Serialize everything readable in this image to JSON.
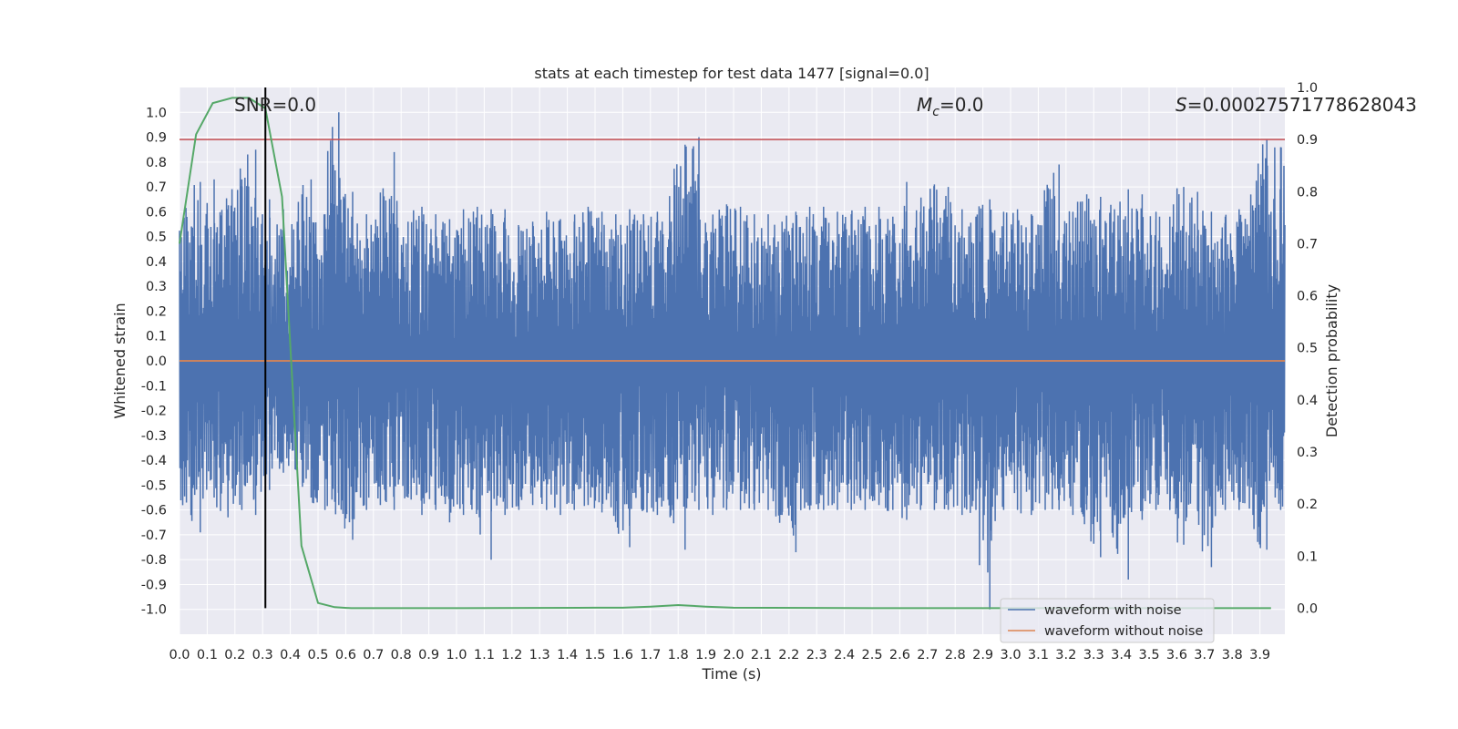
{
  "chart_data": {
    "type": "line",
    "title": "stats at each timestep for test data 1477 [signal=0.0]",
    "xlabel": "Time (s)",
    "ylabel": "Whitened strain",
    "y2label": "Detection probability",
    "xlim": [
      0.0,
      3.99
    ],
    "ylim": [
      -1.1,
      1.1
    ],
    "y2lim": [
      -0.05,
      1.0
    ],
    "x_ticks": [
      0.0,
      0.1,
      0.2,
      0.3,
      0.4,
      0.5,
      0.6,
      0.7,
      0.8,
      0.9,
      1.0,
      1.1,
      1.2,
      1.3,
      1.4,
      1.5,
      1.6,
      1.7,
      1.8,
      1.9,
      2.0,
      2.1,
      2.2,
      2.3,
      2.4,
      2.5,
      2.6,
      2.7,
      2.8,
      2.9,
      3.0,
      3.1,
      3.2,
      3.3,
      3.4,
      3.5,
      3.6,
      3.7,
      3.8,
      3.9
    ],
    "x_tick_labels": [
      "0.0",
      "0.1",
      "0.2",
      "0.3",
      "0.4",
      "0.5",
      "0.6",
      "0.7",
      "0.8",
      "0.9",
      "1.0",
      "1.1",
      "1.2",
      "1.3",
      "1.4",
      "1.5",
      "1.6",
      "1.7",
      "1.8",
      "1.9",
      "2.0",
      "2.1",
      "2.2",
      "2.3",
      "2.4",
      "2.5",
      "2.6",
      "2.7",
      "2.8",
      "2.9",
      "3.0",
      "3.1",
      "3.2",
      "3.3",
      "3.4",
      "3.5",
      "3.6",
      "3.7",
      "3.8",
      "3.9"
    ],
    "y_ticks": [
      1.0,
      0.9,
      0.8,
      0.7,
      0.6,
      0.5,
      0.4,
      0.3,
      0.2,
      0.1,
      0.0,
      -0.1,
      -0.2,
      -0.3,
      -0.4,
      -0.5,
      -0.6,
      -0.7,
      -0.8,
      -0.9,
      -1.0
    ],
    "y_tick_labels": [
      "1.0",
      "0.9",
      "0.8",
      "0.7",
      "0.6",
      "0.5",
      "0.4",
      "0.3",
      "0.2",
      "0.1",
      "0.0",
      "-0.1",
      "-0.2",
      "-0.3",
      "-0.4",
      "-0.5",
      "-0.6",
      "-0.7",
      "-0.8",
      "-0.9",
      "-1.0"
    ],
    "y2_ticks": [
      1.0,
      0.9,
      0.8,
      0.7,
      0.6,
      0.5,
      0.4,
      0.3,
      0.2,
      0.1,
      0.0
    ],
    "y2_tick_labels": [
      "1.0",
      "0.9",
      "0.8",
      "0.7",
      "0.6",
      "0.5",
      "0.4",
      "0.3",
      "0.2",
      "0.1",
      "0.0"
    ],
    "annotations": {
      "snr": "SNR=0.0",
      "mc_symbol": "M",
      "mc_sub": "c",
      "mc_value": "=0.0",
      "s_symbol": "S",
      "s_value": "=0.00027571778628043"
    },
    "series": [
      {
        "name": "waveform with noise",
        "color": "#4c72b0",
        "description": "dense whitened-strain noise, approximate envelope",
        "x": [
          0.0,
          0.05,
          0.1,
          0.15,
          0.2,
          0.25,
          0.3,
          0.35,
          0.4,
          0.45,
          0.5,
          0.55,
          0.6,
          0.65,
          0.7,
          0.75,
          0.8,
          0.85,
          0.9,
          0.95,
          1.0,
          1.05,
          1.1,
          1.15,
          1.2,
          1.25,
          1.3,
          1.35,
          1.4,
          1.45,
          1.5,
          1.55,
          1.6,
          1.65,
          1.7,
          1.75,
          1.8,
          1.85,
          1.9,
          1.95,
          2.0,
          2.05,
          2.1,
          2.15,
          2.2,
          2.25,
          2.3,
          2.35,
          2.4,
          2.45,
          2.5,
          2.55,
          2.6,
          2.65,
          2.7,
          2.75,
          2.8,
          2.85,
          2.9,
          2.95,
          3.0,
          3.05,
          3.1,
          3.15,
          3.2,
          3.25,
          3.3,
          3.35,
          3.4,
          3.45,
          3.5,
          3.55,
          3.6,
          3.65,
          3.7,
          3.75,
          3.8,
          3.85,
          3.9,
          3.95
        ],
        "max": [
          0.53,
          0.72,
          0.73,
          0.61,
          0.73,
          0.85,
          0.65,
          0.61,
          0.56,
          0.73,
          0.59,
          1.0,
          0.68,
          0.59,
          0.55,
          0.84,
          0.56,
          0.62,
          0.59,
          0.57,
          0.61,
          0.62,
          0.61,
          0.61,
          0.54,
          0.56,
          0.6,
          0.57,
          0.56,
          0.62,
          0.6,
          0.59,
          0.61,
          0.59,
          0.6,
          0.56,
          0.87,
          0.9,
          0.57,
          0.63,
          0.62,
          0.59,
          0.59,
          0.56,
          0.6,
          0.62,
          0.62,
          0.6,
          0.59,
          0.62,
          0.62,
          0.58,
          0.72,
          0.6,
          0.71,
          0.7,
          0.61,
          0.58,
          0.65,
          0.6,
          0.61,
          0.59,
          0.62,
          0.79,
          0.6,
          0.67,
          0.66,
          0.61,
          0.69,
          0.67,
          0.6,
          0.58,
          0.7,
          0.68,
          0.6,
          0.58,
          0.61,
          0.59,
          0.89,
          0.86
        ],
        "min": [
          -0.57,
          -0.69,
          -0.55,
          -0.63,
          -0.6,
          -0.62,
          -0.52,
          -0.45,
          -0.42,
          -0.55,
          -0.6,
          -0.58,
          -0.72,
          -0.6,
          -0.58,
          -0.6,
          -0.55,
          -0.62,
          -0.6,
          -0.65,
          -0.62,
          -0.6,
          -0.8,
          -0.62,
          -0.6,
          -0.58,
          -0.6,
          -0.62,
          -0.6,
          -0.58,
          -0.61,
          -0.6,
          -0.75,
          -0.6,
          -0.62,
          -0.58,
          -0.76,
          -0.6,
          -0.62,
          -0.6,
          -0.6,
          -0.6,
          -0.6,
          -0.62,
          -0.77,
          -0.6,
          -0.6,
          -0.6,
          -0.6,
          -0.6,
          -0.58,
          -0.6,
          -0.64,
          -0.6,
          -0.6,
          -0.6,
          -0.62,
          -0.6,
          -1.0,
          -0.6,
          -0.6,
          -0.62,
          -0.6,
          -0.6,
          -0.62,
          -0.6,
          -0.79,
          -0.6,
          -0.88,
          -0.64,
          -0.6,
          -0.6,
          -0.74,
          -0.6,
          -0.83,
          -0.6,
          -0.6,
          -0.62,
          -0.76,
          -0.6
        ]
      },
      {
        "name": "waveform without noise",
        "color": "#dd8452",
        "x": [
          0.0,
          3.99
        ],
        "y": [
          0.0,
          0.0
        ]
      },
      {
        "name": "detection probability",
        "color": "#55a868",
        "axis": "right",
        "x": [
          0.0,
          0.06,
          0.12,
          0.19,
          0.25,
          0.31,
          0.37,
          0.44,
          0.5,
          0.56,
          0.62,
          0.75,
          1.0,
          1.5,
          1.6,
          1.7,
          1.8,
          1.9,
          2.0,
          2.5,
          3.0,
          3.5,
          3.94
        ],
        "y": [
          0.7,
          0.91,
          0.97,
          0.98,
          0.98,
          0.96,
          0.79,
          0.12,
          0.01,
          0.002,
          0.0,
          0.0,
          0.0,
          0.001,
          0.001,
          0.003,
          0.006,
          0.003,
          0.001,
          0.0,
          0.0,
          0.0,
          0.0
        ]
      }
    ],
    "threshold": {
      "axis": "right",
      "value": 0.9,
      "color": "#c44e52"
    },
    "vline": {
      "x": 0.31,
      "color": "#000000"
    },
    "legend": {
      "position": "lower-right",
      "entries": [
        "waveform with noise",
        "waveform without noise"
      ]
    }
  }
}
